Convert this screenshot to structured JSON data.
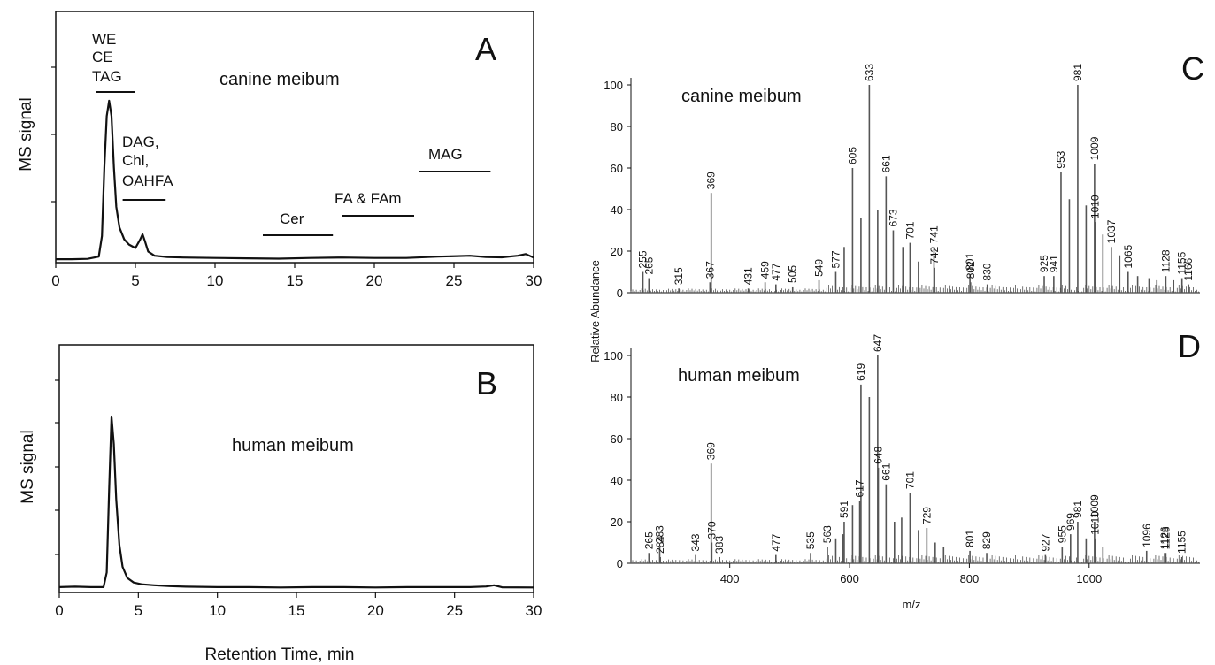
{
  "colors": {
    "trace": "#111111",
    "ms_bars": "#555555",
    "axis": "#111111"
  },
  "chart_data": [
    {
      "panel": "A",
      "type": "line",
      "annotation": "canine meibum",
      "ylabel": "MS signal",
      "xlim": [
        0,
        30
      ],
      "ylim": [
        0,
        100
      ],
      "xticks": [
        0,
        5,
        10,
        15,
        20,
        25,
        30
      ],
      "series": [
        {
          "x": [
            0,
            1,
            2,
            2.7,
            2.9,
            3.05,
            3.2,
            3.35,
            3.5,
            3.65,
            3.8,
            4.0,
            4.3,
            4.6,
            5.0,
            5.3,
            5.45,
            5.6,
            5.8,
            6.2,
            7,
            8,
            10,
            12,
            14,
            16,
            18,
            20,
            22,
            24,
            26,
            27,
            28,
            29,
            29.5,
            30
          ],
          "y": [
            1.5,
            1.5,
            1.7,
            3,
            15,
            55,
            85,
            94,
            85,
            55,
            32,
            20,
            13,
            10,
            8,
            13,
            16,
            12,
            6,
            3.5,
            2.8,
            2.5,
            2.2,
            2,
            1.8,
            2.2,
            2.5,
            2.2,
            2.2,
            3,
            3.5,
            2.8,
            2.6,
            3.5,
            4.5,
            2.5
          ]
        }
      ],
      "regions": [
        {
          "label": "WE",
          "x": [
            2.5,
            5
          ]
        },
        {
          "label": "CE",
          "x": [
            2.5,
            5
          ]
        },
        {
          "label": "TAG",
          "x": [
            2.5,
            5
          ]
        },
        {
          "label": "DAG,",
          "x": [
            4.2,
            6.9
          ]
        },
        {
          "label": "Chl,",
          "x": [
            4.2,
            6.9
          ]
        },
        {
          "label": "OAHFA",
          "x": [
            4.2,
            6.9
          ]
        },
        {
          "label": "Cer",
          "x": [
            13,
            17.4
          ]
        },
        {
          "label": "FA & FAm",
          "x": [
            18,
            22.5
          ]
        },
        {
          "label": "MAG",
          "x": [
            22.8,
            27.3
          ]
        }
      ]
    },
    {
      "panel": "B",
      "type": "line",
      "annotation": "human meibum",
      "ylabel": "MS signal",
      "xlabel": "Retention Time, min",
      "xlim": [
        0,
        30
      ],
      "ylim": [
        0,
        100
      ],
      "xticks": [
        0,
        5,
        10,
        15,
        20,
        25,
        30
      ],
      "series": [
        {
          "x": [
            0,
            1,
            2,
            2.8,
            3.0,
            3.15,
            3.3,
            3.45,
            3.6,
            3.8,
            4.0,
            4.3,
            4.7,
            5.2,
            6,
            7,
            8,
            10,
            12,
            14,
            16,
            18,
            20,
            22,
            24,
            26,
            27,
            27.5,
            28,
            30
          ],
          "y": [
            2,
            2.2,
            2,
            2,
            10,
            55,
            95,
            80,
            50,
            25,
            13,
            7,
            4.5,
            3.5,
            3,
            2.5,
            2.2,
            2,
            2,
            1.8,
            2,
            2,
            1.8,
            2,
            2,
            2,
            2.3,
            3,
            1.9,
            1.8
          ]
        }
      ]
    },
    {
      "panel": "C",
      "type": "bar",
      "annotation": "canine meibum",
      "ylabel": "Relative Abundance",
      "xlim": [
        235,
        1185
      ],
      "ylim": [
        0,
        100
      ],
      "yticks": [
        0,
        20,
        40,
        60,
        80,
        100
      ],
      "peaks": [
        [
          255,
          10
        ],
        [
          265,
          7
        ],
        [
          315,
          2
        ],
        [
          367,
          5
        ],
        [
          369,
          48
        ],
        [
          431,
          2
        ],
        [
          459,
          5
        ],
        [
          477,
          4
        ],
        [
          505,
          3
        ],
        [
          549,
          6
        ],
        [
          577,
          10
        ],
        [
          605,
          60
        ],
        [
          633,
          100
        ],
        [
          661,
          56
        ],
        [
          673,
          30
        ],
        [
          701,
          24
        ],
        [
          741,
          22
        ],
        [
          742,
          12
        ],
        [
          801,
          9
        ],
        [
          802,
          5
        ],
        [
          830,
          4
        ],
        [
          925,
          8
        ],
        [
          941,
          8
        ],
        [
          953,
          58
        ],
        [
          981,
          100
        ],
        [
          1009,
          62
        ],
        [
          1010,
          34
        ],
        [
          1037,
          22
        ],
        [
          1065,
          10
        ],
        [
          1128,
          8
        ],
        [
          1155,
          7
        ],
        [
          1166,
          4
        ],
        [
          591,
          22
        ],
        [
          619,
          36
        ],
        [
          647,
          40
        ],
        [
          689,
          22
        ],
        [
          715,
          15
        ],
        [
          967,
          45
        ],
        [
          995,
          42
        ],
        [
          1023,
          28
        ],
        [
          1051,
          18
        ],
        [
          1081,
          8
        ],
        [
          1100,
          7
        ],
        [
          1113,
          6
        ],
        [
          1141,
          6
        ]
      ],
      "labels": [
        [
          255,
          "255"
        ],
        [
          265,
          "265"
        ],
        [
          315,
          "315"
        ],
        [
          367,
          "367"
        ],
        [
          369,
          "369"
        ],
        [
          431,
          "431"
        ],
        [
          459,
          "459"
        ],
        [
          477,
          "477"
        ],
        [
          505,
          "505"
        ],
        [
          549,
          "549"
        ],
        [
          577,
          "577"
        ],
        [
          605,
          "605"
        ],
        [
          633,
          "633"
        ],
        [
          661,
          "661"
        ],
        [
          673,
          "673"
        ],
        [
          701,
          "701"
        ],
        [
          741,
          "741"
        ],
        [
          742,
          "742"
        ],
        [
          801,
          "801"
        ],
        [
          802,
          "802"
        ],
        [
          830,
          "830"
        ],
        [
          925,
          "925"
        ],
        [
          941,
          "941"
        ],
        [
          953,
          "953"
        ],
        [
          981,
          "981"
        ],
        [
          1009,
          "1009"
        ],
        [
          1010,
          "1010"
        ],
        [
          1037,
          "1037"
        ],
        [
          1065,
          "1065"
        ],
        [
          1128,
          "1128"
        ],
        [
          1155,
          "1155"
        ],
        [
          1166,
          "1166"
        ]
      ]
    },
    {
      "panel": "D",
      "type": "bar",
      "annotation": "human meibum",
      "ylabel": "Relative Abundance",
      "xlabel": "m/z",
      "xlim": [
        235,
        1185
      ],
      "ylim": [
        0,
        100
      ],
      "yticks": [
        0,
        20,
        40,
        60,
        80,
        100
      ],
      "xticks": [
        400,
        600,
        800,
        1000
      ],
      "peaks": [
        [
          265,
          5
        ],
        [
          283,
          8
        ],
        [
          284,
          3
        ],
        [
          343,
          4
        ],
        [
          369,
          48
        ],
        [
          370,
          10
        ],
        [
          383,
          3
        ],
        [
          477,
          4
        ],
        [
          535,
          5
        ],
        [
          563,
          8
        ],
        [
          591,
          20
        ],
        [
          617,
          30
        ],
        [
          619,
          86
        ],
        [
          633,
          80
        ],
        [
          647,
          100
        ],
        [
          648,
          46
        ],
        [
          661,
          38
        ],
        [
          675,
          20
        ],
        [
          701,
          34
        ],
        [
          715,
          16
        ],
        [
          729,
          17
        ],
        [
          801,
          6
        ],
        [
          829,
          5
        ],
        [
          927,
          4
        ],
        [
          955,
          8
        ],
        [
          969,
          14
        ],
        [
          981,
          20
        ],
        [
          1009,
          20
        ],
        [
          1010,
          12
        ],
        [
          1096,
          6
        ],
        [
          1126,
          5
        ],
        [
          1128,
          5
        ],
        [
          1155,
          3
        ],
        [
          577,
          12
        ],
        [
          605,
          28
        ],
        [
          589,
          14
        ],
        [
          687,
          22
        ],
        [
          743,
          10
        ],
        [
          757,
          8
        ],
        [
          995,
          12
        ],
        [
          1023,
          8
        ]
      ],
      "labels": [
        [
          265,
          "265"
        ],
        [
          283,
          "283"
        ],
        [
          284,
          "284"
        ],
        [
          343,
          "343"
        ],
        [
          369,
          "369"
        ],
        [
          370,
          "370"
        ],
        [
          383,
          "383"
        ],
        [
          477,
          "477"
        ],
        [
          535,
          "535"
        ],
        [
          563,
          "563"
        ],
        [
          591,
          "591"
        ],
        [
          617,
          "617"
        ],
        [
          619,
          "619"
        ],
        [
          647,
          "647"
        ],
        [
          648,
          "648"
        ],
        [
          661,
          "661"
        ],
        [
          701,
          "701"
        ],
        [
          729,
          "729"
        ],
        [
          801,
          "801"
        ],
        [
          829,
          "829"
        ],
        [
          927,
          "927"
        ],
        [
          955,
          "955"
        ],
        [
          969,
          "969"
        ],
        [
          981,
          "981"
        ],
        [
          1009,
          "1009"
        ],
        [
          1010,
          "1010"
        ],
        [
          1096,
          "1096"
        ],
        [
          1126,
          "1126"
        ],
        [
          1128,
          "1128"
        ],
        [
          1155,
          "1155"
        ]
      ]
    }
  ]
}
